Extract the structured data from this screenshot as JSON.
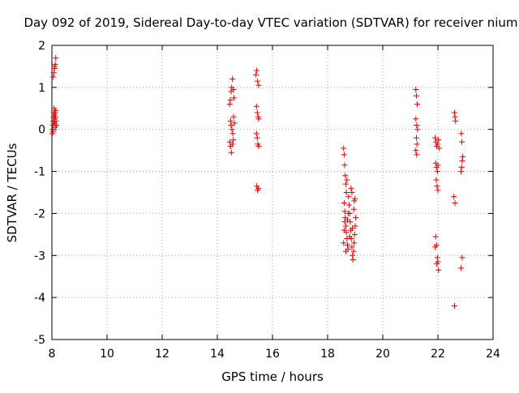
{
  "chart_data": {
    "type": "scatter",
    "title": "Day 092 of 2019, Sidereal Day-to-day VTEC variation (SDTVAR) for receiver nium",
    "xlabel": "GPS time / hours",
    "ylabel": "SDTVAR / TECUs",
    "xlim": [
      8,
      24
    ],
    "ylim": [
      -5,
      2
    ],
    "xticks": [
      8,
      10,
      12,
      14,
      16,
      18,
      20,
      22,
      24
    ],
    "yticks": [
      -5,
      -4,
      -3,
      -2,
      -1,
      0,
      1,
      2
    ],
    "xtick_labels": [
      "8",
      "10",
      "12",
      "14",
      "16",
      "18",
      "20",
      "22",
      "24"
    ],
    "ytick_labels": [
      "-5",
      "-4",
      "-3",
      "-2",
      "-1",
      "0",
      "1",
      "2"
    ],
    "grid": true,
    "marker": "+",
    "marker_color": "#e00000",
    "series": [
      {
        "name": "SDTVAR",
        "points": [
          [
            8.05,
            1.25
          ],
          [
            8.07,
            1.35
          ],
          [
            8.09,
            1.45
          ],
          [
            8.1,
            1.5
          ],
          [
            8.12,
            1.55
          ],
          [
            8.14,
            1.7
          ],
          [
            8.02,
            -0.1
          ],
          [
            8.03,
            0.0
          ],
          [
            8.04,
            0.1
          ],
          [
            8.05,
            0.2
          ],
          [
            8.06,
            0.3
          ],
          [
            8.07,
            0.4
          ],
          [
            8.08,
            0.5
          ],
          [
            8.09,
            0.35
          ],
          [
            8.1,
            0.25
          ],
          [
            8.11,
            0.15
          ],
          [
            8.12,
            0.05
          ],
          [
            8.13,
            0.3
          ],
          [
            8.14,
            0.45
          ],
          [
            8.15,
            0.2
          ],
          [
            8.16,
            0.1
          ],
          [
            8.04,
            -0.05
          ],
          [
            8.08,
            0.15
          ],
          [
            8.12,
            0.4
          ],
          [
            14.45,
            0.6
          ],
          [
            14.47,
            0.7
          ],
          [
            14.5,
            0.9
          ],
          [
            14.52,
            1.0
          ],
          [
            14.55,
            1.2
          ],
          [
            14.58,
            0.95
          ],
          [
            14.6,
            0.75
          ],
          [
            14.48,
            0.2
          ],
          [
            14.5,
            0.1
          ],
          [
            14.53,
            0.0
          ],
          [
            14.56,
            -0.1
          ],
          [
            14.59,
            0.3
          ],
          [
            14.62,
            0.15
          ],
          [
            14.45,
            -0.3
          ],
          [
            14.48,
            -0.4
          ],
          [
            14.51,
            -0.55
          ],
          [
            14.55,
            -0.35
          ],
          [
            14.58,
            -0.25
          ],
          [
            15.4,
            1.3
          ],
          [
            15.43,
            1.4
          ],
          [
            15.46,
            1.15
          ],
          [
            15.5,
            1.05
          ],
          [
            15.42,
            0.55
          ],
          [
            15.45,
            0.4
          ],
          [
            15.48,
            0.3
          ],
          [
            15.5,
            0.25
          ],
          [
            15.42,
            -0.1
          ],
          [
            15.45,
            -0.2
          ],
          [
            15.47,
            -0.35
          ],
          [
            15.5,
            -0.4
          ],
          [
            15.43,
            -1.35
          ],
          [
            15.46,
            -1.45
          ],
          [
            15.49,
            -1.4
          ],
          [
            18.58,
            -0.45
          ],
          [
            18.6,
            -0.6
          ],
          [
            18.62,
            -0.85
          ],
          [
            18.64,
            -1.1
          ],
          [
            18.66,
            -1.3
          ],
          [
            18.68,
            -1.5
          ],
          [
            18.6,
            -1.75
          ],
          [
            18.62,
            -1.95
          ],
          [
            18.64,
            -2.1
          ],
          [
            18.66,
            -2.3
          ],
          [
            18.68,
            -2.45
          ],
          [
            18.7,
            -2.6
          ],
          [
            18.72,
            -2.75
          ],
          [
            18.74,
            -2.85
          ],
          [
            18.58,
            -2.7
          ],
          [
            18.6,
            -2.4
          ],
          [
            18.62,
            -2.2
          ],
          [
            18.76,
            -1.6
          ],
          [
            18.78,
            -1.8
          ],
          [
            18.8,
            -2.0
          ],
          [
            18.82,
            -2.2
          ],
          [
            18.84,
            -2.4
          ],
          [
            18.86,
            -2.6
          ],
          [
            18.88,
            -2.8
          ],
          [
            18.9,
            -3.0
          ],
          [
            18.92,
            -3.1
          ],
          [
            18.94,
            -2.9
          ],
          [
            18.96,
            -2.7
          ],
          [
            18.98,
            -2.5
          ],
          [
            19.0,
            -2.3
          ],
          [
            19.02,
            -2.1
          ],
          [
            18.95,
            -1.9
          ],
          [
            18.97,
            -1.7
          ],
          [
            18.99,
            -1.65
          ],
          [
            18.88,
            -1.5
          ],
          [
            18.85,
            -1.4
          ],
          [
            18.7,
            -1.2
          ],
          [
            18.8,
            -2.55
          ],
          [
            18.9,
            -2.35
          ],
          [
            18.75,
            -2.0
          ],
          [
            18.66,
            -2.9
          ],
          [
            18.72,
            -2.15
          ],
          [
            21.2,
            0.95
          ],
          [
            21.22,
            0.8
          ],
          [
            21.25,
            0.6
          ],
          [
            21.2,
            0.25
          ],
          [
            21.23,
            0.1
          ],
          [
            21.26,
            0.0
          ],
          [
            21.22,
            -0.2
          ],
          [
            21.24,
            -0.35
          ],
          [
            21.2,
            -0.5
          ],
          [
            21.23,
            -0.6
          ],
          [
            21.9,
            -0.2
          ],
          [
            21.93,
            -0.3
          ],
          [
            21.96,
            -0.4
          ],
          [
            21.99,
            -0.35
          ],
          [
            22.02,
            -0.25
          ],
          [
            22.05,
            -0.45
          ],
          [
            21.92,
            -0.8
          ],
          [
            21.95,
            -0.9
          ],
          [
            21.98,
            -1.0
          ],
          [
            22.0,
            -0.85
          ],
          [
            21.94,
            -1.2
          ],
          [
            21.97,
            -1.35
          ],
          [
            22.0,
            -1.45
          ],
          [
            21.92,
            -2.55
          ],
          [
            21.9,
            -2.8
          ],
          [
            21.95,
            -2.75
          ],
          [
            21.98,
            -3.05
          ],
          [
            22.0,
            -3.15
          ],
          [
            22.02,
            -3.35
          ],
          [
            21.96,
            -3.2
          ],
          [
            22.6,
            0.4
          ],
          [
            22.62,
            0.3
          ],
          [
            22.64,
            0.2
          ],
          [
            22.58,
            -1.6
          ],
          [
            22.62,
            -1.75
          ],
          [
            22.6,
            -4.2
          ],
          [
            22.85,
            -0.1
          ],
          [
            22.87,
            -0.3
          ],
          [
            22.9,
            -0.65
          ],
          [
            22.88,
            -0.75
          ],
          [
            22.86,
            -0.9
          ],
          [
            22.84,
            -1.0
          ],
          [
            22.88,
            -3.05
          ],
          [
            22.84,
            -3.3
          ]
        ]
      }
    ]
  }
}
